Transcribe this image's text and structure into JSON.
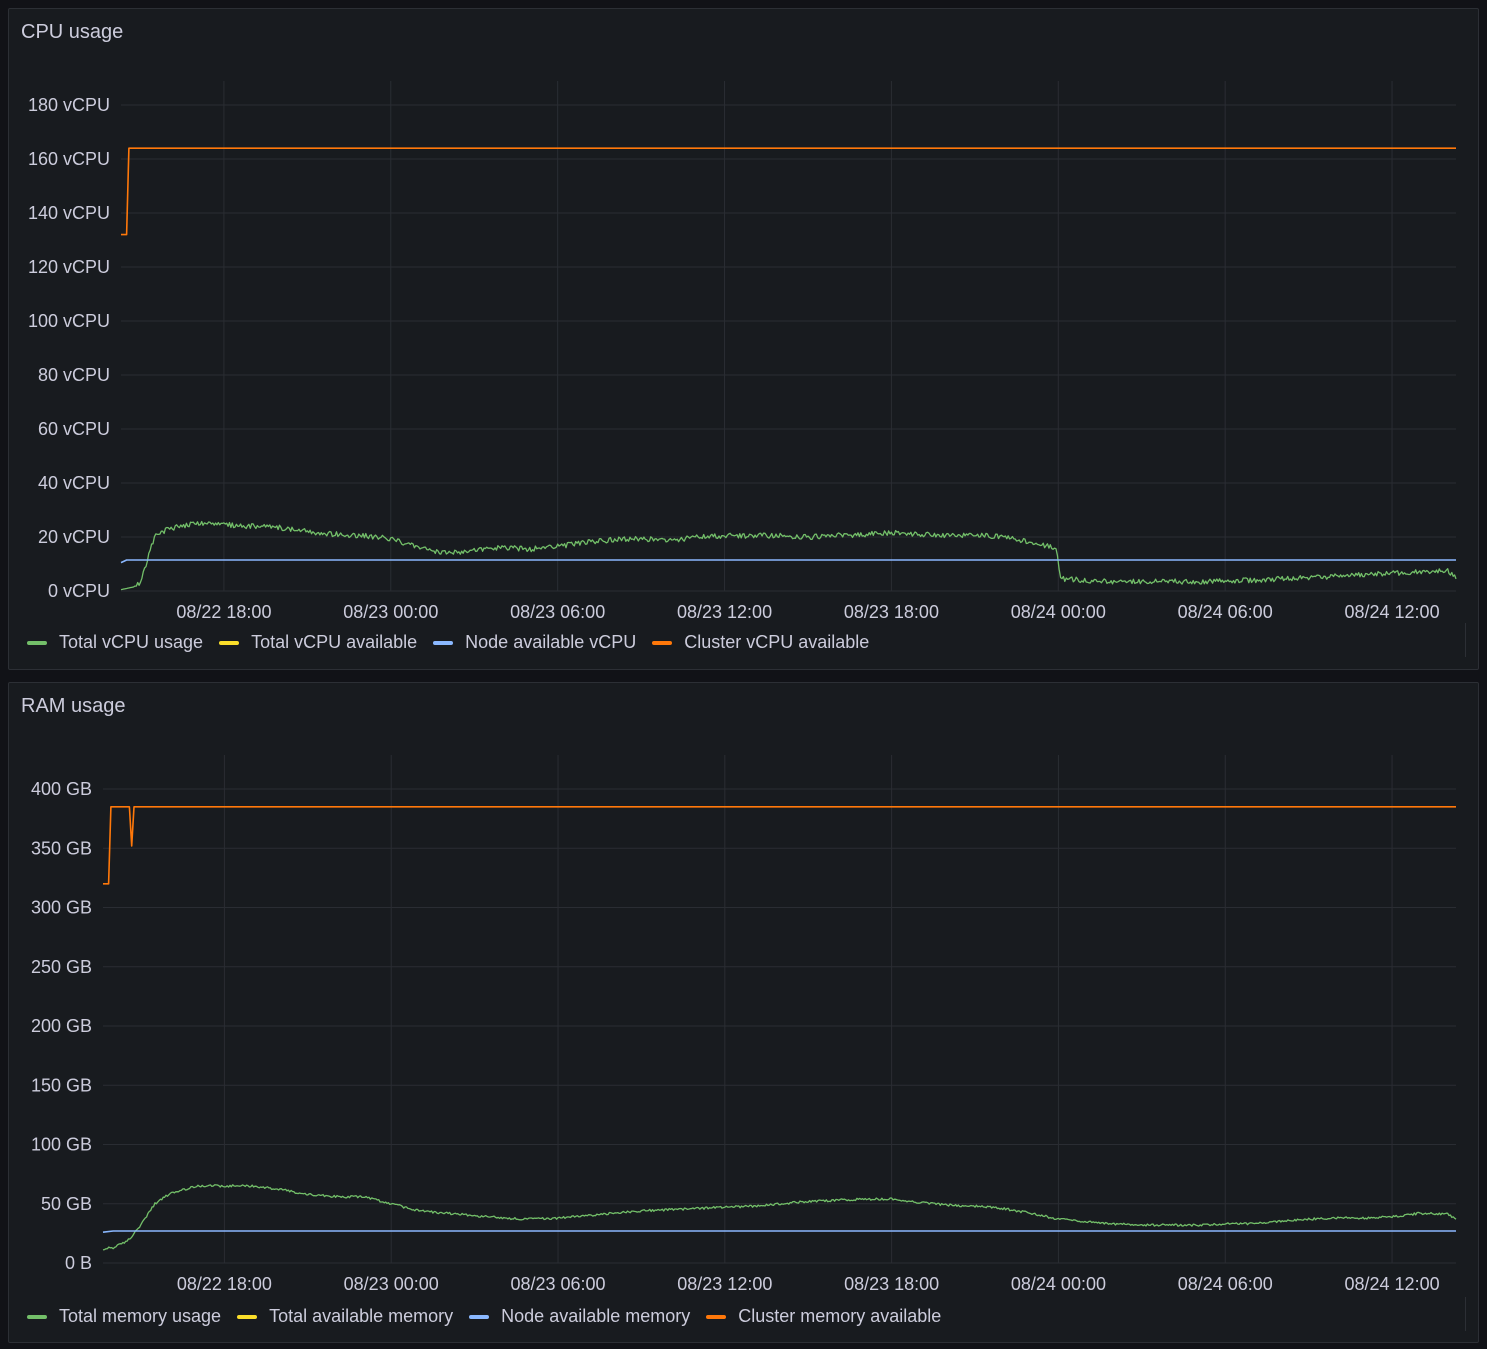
{
  "panels": [
    {
      "title": "CPU usage",
      "legend": [
        {
          "label": "Total vCPU usage",
          "color": "#73bf69"
        },
        {
          "label": "Total vCPU available",
          "color": "#fade2a"
        },
        {
          "label": "Node available vCPU",
          "color": "#8ab8ff"
        },
        {
          "label": "Cluster vCPU available",
          "color": "#ff780a"
        }
      ]
    },
    {
      "title": "RAM usage",
      "legend": [
        {
          "label": "Total memory usage",
          "color": "#73bf69"
        },
        {
          "label": "Total available memory",
          "color": "#fade2a"
        },
        {
          "label": "Node available memory",
          "color": "#8ab8ff"
        },
        {
          "label": "Cluster memory available",
          "color": "#ff780a"
        }
      ]
    }
  ],
  "chart_data": [
    {
      "type": "line",
      "title": "CPU usage",
      "y_unit": "vCPU",
      "ylim": [
        0,
        180
      ],
      "y_ticks": [
        0,
        20,
        40,
        60,
        80,
        100,
        120,
        140,
        160,
        180
      ],
      "y_tick_labels": [
        "0 vCPU",
        "20 vCPU",
        "40 vCPU",
        "60 vCPU",
        "80 vCPU",
        "100 vCPU",
        "120 vCPU",
        "140 vCPU",
        "160 vCPU",
        "180 vCPU"
      ],
      "xlim": [
        "08/22 14:18",
        "08/24 14:18"
      ],
      "x_ticks": [
        "08/22 18:00",
        "08/23 00:00",
        "08/23 06:00",
        "08/23 12:00",
        "08/23 18:00",
        "08/24 00:00",
        "08/24 06:00",
        "08/24 12:00"
      ],
      "grid": true,
      "legend_position": "bottom-left",
      "series": [
        {
          "name": "Total vCPU usage",
          "color": "#73bf69",
          "x": [
            "08/22 14:18",
            "08/22 14:45",
            "08/22 15:00",
            "08/22 15:30",
            "08/22 16:00",
            "08/22 17:00",
            "08/22 18:00",
            "08/22 19:00",
            "08/22 20:00",
            "08/22 21:00",
            "08/22 22:00",
            "08/22 23:00",
            "08/23 00:00",
            "08/23 01:00",
            "08/23 02:00",
            "08/23 03:00",
            "08/23 04:00",
            "08/23 05:00",
            "08/23 06:00",
            "08/23 07:00",
            "08/23 08:00",
            "08/23 09:00",
            "08/23 10:00",
            "08/23 11:00",
            "08/23 12:00",
            "08/23 13:00",
            "08/23 14:00",
            "08/23 15:00",
            "08/23 16:00",
            "08/23 17:00",
            "08/23 18:00",
            "08/23 19:00",
            "08/23 20:00",
            "08/23 21:00",
            "08/23 22:00",
            "08/23 23:00",
            "08/23 23:55",
            "08/24 00:05",
            "08/24 01:00",
            "08/24 02:00",
            "08/24 03:00",
            "08/24 04:00",
            "08/24 05:00",
            "08/24 06:00",
            "08/24 07:00",
            "08/24 08:00",
            "08/24 09:00",
            "08/24 10:00",
            "08/24 11:00",
            "08/24 12:00",
            "08/24 13:00",
            "08/24 14:00",
            "08/24 14:18"
          ],
          "values": [
            0.5,
            1.5,
            3,
            20,
            23,
            25,
            24.5,
            24,
            23.5,
            22,
            21,
            20.5,
            19.5,
            16,
            14,
            15,
            16,
            15.5,
            16.5,
            18,
            19,
            19.5,
            18.5,
            20,
            20.5,
            20.5,
            20.5,
            20,
            20.5,
            21,
            21.5,
            21,
            20.5,
            21,
            20,
            18,
            16,
            4.5,
            4,
            3.5,
            3.5,
            3.5,
            3.5,
            3.8,
            4,
            4.5,
            5,
            5.5,
            6,
            6.5,
            7,
            7.5,
            4.5
          ]
        },
        {
          "name": "Node available vCPU",
          "color": "#8ab8ff",
          "x": [
            "08/22 14:18",
            "08/22 14:30",
            "08/24 14:18"
          ],
          "values": [
            10.5,
            11.5,
            11.5
          ]
        },
        {
          "name": "Cluster vCPU available",
          "color": "#ff780a",
          "x": [
            "08/22 14:18",
            "08/22 14:30",
            "08/22 14:35",
            "08/24 14:18"
          ],
          "values": [
            132,
            132,
            164,
            164
          ]
        }
      ]
    },
    {
      "type": "line",
      "title": "RAM usage",
      "y_unit": "GB",
      "ylim": [
        0,
        400
      ],
      "y_ticks": [
        0,
        50,
        100,
        150,
        200,
        250,
        300,
        350,
        400
      ],
      "y_tick_labels": [
        "0 B",
        "50 GB",
        "100 GB",
        "150 GB",
        "200 GB",
        "250 GB",
        "300 GB",
        "350 GB",
        "400 GB"
      ],
      "xlim": [
        "08/22 13:38",
        "08/24 14:18"
      ],
      "x_ticks": [
        "08/22 18:00",
        "08/23 00:00",
        "08/23 06:00",
        "08/23 12:00",
        "08/23 18:00",
        "08/24 00:00",
        "08/24 06:00",
        "08/24 12:00"
      ],
      "grid": true,
      "legend_position": "bottom-left",
      "series": [
        {
          "name": "Total memory usage",
          "color": "#73bf69",
          "x": [
            "08/22 13:38",
            "08/22 14:00",
            "08/22 14:30",
            "08/22 15:00",
            "08/22 15:30",
            "08/22 16:00",
            "08/22 17:00",
            "08/22 18:00",
            "08/22 19:00",
            "08/22 20:00",
            "08/22 21:00",
            "08/22 22:00",
            "08/22 23:00",
            "08/23 00:00",
            "08/23 01:00",
            "08/23 02:00",
            "08/23 03:00",
            "08/23 04:00",
            "08/23 05:00",
            "08/23 06:00",
            "08/23 07:00",
            "08/23 08:00",
            "08/23 09:00",
            "08/23 10:00",
            "08/23 11:00",
            "08/23 12:00",
            "08/23 13:00",
            "08/23 14:00",
            "08/23 15:00",
            "08/23 16:00",
            "08/23 17:00",
            "08/23 18:00",
            "08/23 19:00",
            "08/23 20:00",
            "08/23 21:00",
            "08/23 22:00",
            "08/23 23:00",
            "08/24 00:00",
            "08/24 01:00",
            "08/24 02:00",
            "08/24 03:00",
            "08/24 04:00",
            "08/24 05:00",
            "08/24 06:00",
            "08/24 07:00",
            "08/24 08:00",
            "08/24 09:00",
            "08/24 10:00",
            "08/24 11:00",
            "08/24 12:00",
            "08/24 13:00",
            "08/24 14:00",
            "08/24 14:18"
          ],
          "values": [
            12,
            13,
            18,
            32,
            50,
            58,
            65,
            65,
            65,
            62,
            58,
            56,
            56,
            50,
            44,
            42,
            40,
            38,
            37,
            38,
            40,
            42,
            44,
            45,
            46,
            47,
            48,
            50,
            52,
            53,
            54,
            54,
            51,
            49,
            48,
            46,
            42,
            37,
            35,
            33,
            32,
            32,
            32,
            33,
            33,
            35,
            37,
            38,
            38,
            39,
            42,
            41,
            37
          ]
        },
        {
          "name": "Node available memory",
          "color": "#8ab8ff",
          "x": [
            "08/22 13:38",
            "08/22 14:00",
            "08/24 14:18"
          ],
          "values": [
            26,
            27,
            27
          ]
        },
        {
          "name": "Cluster memory available",
          "color": "#ff780a",
          "x": [
            "08/22 13:38",
            "08/22 13:50",
            "08/22 13:55",
            "08/22 14:35",
            "08/22 14:40",
            "08/22 14:45",
            "08/24 14:18"
          ],
          "values": [
            320,
            320,
            385,
            385,
            352,
            385,
            385
          ]
        }
      ]
    }
  ]
}
